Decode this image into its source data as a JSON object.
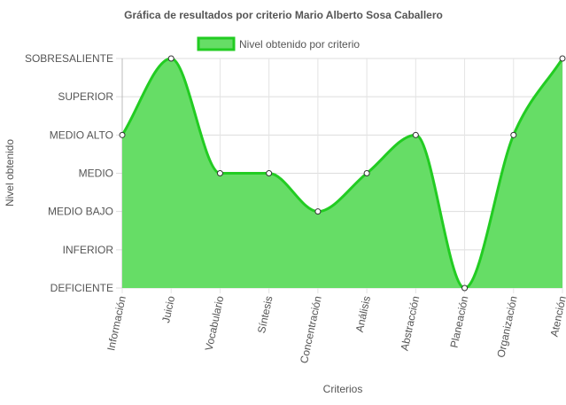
{
  "chart_data": {
    "type": "area",
    "title": "Gráfica de resultados por criterio Mario Alberto Sosa Caballero",
    "xlabel": "Criterios",
    "ylabel": "Nivel obtenido",
    "categories": [
      "Información",
      "Juicio",
      "Vocabulario",
      "Síntesis",
      "Concentración",
      "Análisis",
      "Abstracción",
      "Planeación",
      "Organización",
      "Atención"
    ],
    "levels": [
      "DEFICIENTE",
      "INFERIOR",
      "MEDIO BAJO",
      "MEDIO",
      "MEDIO ALTO",
      "SUPERIOR",
      "SOBRESALIENTE"
    ],
    "ylim": [
      0,
      6
    ],
    "series": [
      {
        "name": "Nivel obtenido por criterio",
        "values": [
          4,
          6,
          3,
          3,
          2,
          3,
          4,
          0,
          4,
          6
        ],
        "value_labels": [
          "MEDIO ALTO",
          "SOBRESALIENTE",
          "MEDIO",
          "MEDIO",
          "MEDIO BAJO",
          "MEDIO",
          "MEDIO ALTO",
          "DEFICIENTE",
          "MEDIO ALTO",
          "SOBRESALIENTE"
        ],
        "fill_color": "#66dd66",
        "line_color": "#22cc22"
      }
    ],
    "grid": true,
    "legend_position": "top"
  }
}
